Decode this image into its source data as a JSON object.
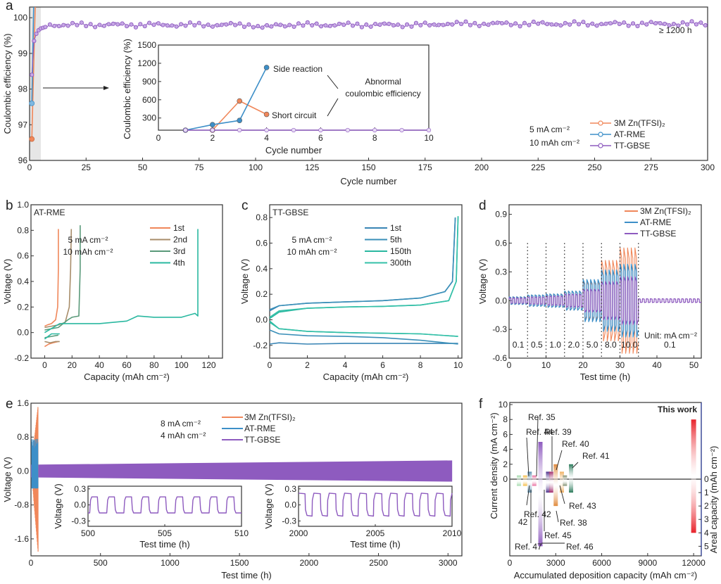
{
  "colors": {
    "zn": "#f0875a",
    "atrme": "#3d8fc8",
    "ttgbse": "#8e5bbf",
    "teal": "#2ab8a0",
    "brown": "#a88d6a",
    "green": "#5a9a7a",
    "thiswork": "#e8222a"
  },
  "chart_data": [
    {
      "panel": "a",
      "type": "scatter",
      "title": "",
      "xlabel": "Cycle number",
      "ylabel": "Coulombic efficiency (%)",
      "xlim": [
        0,
        300
      ],
      "ylim": [
        96,
        100.3
      ],
      "xticks": [
        "0",
        "25",
        "50",
        "75",
        "100",
        "125",
        "150",
        "175",
        "200",
        "225",
        "250",
        "275",
        "300"
      ],
      "yticks": [
        "96",
        "97",
        "98",
        "99",
        "100"
      ],
      "annotation": "≥ 1200 h",
      "conditions": [
        "5 mA cm⁻²",
        "10 mAh cm⁻²"
      ],
      "legend": [
        "3M Zn(TFSI)₂",
        "AT-RME",
        "TT-GBSE"
      ],
      "legend_position": "bottom-right",
      "series": [
        {
          "name": "3M Zn(TFSI)₂",
          "x": [
            1,
            2
          ],
          "y": [
            96.6,
            100.3
          ]
        },
        {
          "name": "AT-RME",
          "x": [
            1,
            2
          ],
          "y": [
            97.6,
            100.3
          ]
        },
        {
          "name": "TT-GBSE",
          "x": [
            1,
            2,
            3,
            4,
            5,
            10,
            25,
            50,
            75,
            100,
            125,
            150,
            175,
            200,
            225,
            250,
            275,
            300
          ],
          "y": [
            98.4,
            99.35,
            99.55,
            99.65,
            99.72,
            99.78,
            99.8,
            99.82,
            99.8,
            99.75,
            99.8,
            99.8,
            99.82,
            99.85,
            99.85,
            99.85,
            99.85,
            99.85
          ]
        }
      ],
      "inset": {
        "xlabel": "Cycle number",
        "ylabel": "Coulombic efficiency (%)",
        "xlim": [
          0,
          10
        ],
        "ylim": [
          100,
          1500
        ],
        "xticks": [
          "0",
          "2",
          "4",
          "6",
          "8",
          "10"
        ],
        "yticks": [
          "300",
          "600",
          "900",
          "1200",
          "1500"
        ],
        "annotations": [
          "Side reaction",
          "Short circuit",
          "Abnormal",
          "coulombic efficiency"
        ],
        "series": [
          {
            "name": "3M Zn(TFSI)₂",
            "x": [
              2,
              3,
              4
            ],
            "y": [
              100,
              580,
              360
            ]
          },
          {
            "name": "AT-RME",
            "x": [
              1,
              2,
              3,
              4
            ],
            "y": [
              100,
              190,
              260,
              1130
            ]
          },
          {
            "name": "TT-GBSE",
            "x": [
              1,
              2,
              3,
              4,
              5,
              6,
              7,
              8,
              9,
              10
            ],
            "y": [
              100,
              100,
              100,
              100,
              100,
              100,
              100,
              100,
              100,
              100
            ]
          }
        ]
      }
    },
    {
      "panel": "b",
      "type": "line",
      "title": "AT-RME",
      "xlabel": "Capacity (mAh cm⁻²)",
      "ylabel": "Voltage (V)",
      "xlim": [
        -10,
        130
      ],
      "ylim": [
        -0.2,
        1.0
      ],
      "xticks": [
        "0",
        "20",
        "40",
        "60",
        "80",
        "100",
        "120"
      ],
      "yticks": [
        "-0.2",
        "0.0",
        "0.2",
        "0.4",
        "0.6",
        "0.8",
        "1.0"
      ],
      "conditions": [
        "5 mA cm⁻²",
        "10 mAh cm⁻²"
      ],
      "legend": [
        "1st",
        "2nd",
        "3rd",
        "4th"
      ],
      "series": [
        {
          "name": "1st",
          "x": [
            0,
            2,
            5,
            8,
            9.5,
            10,
            10
          ],
          "y": [
            0.05,
            0.06,
            0.07,
            0.1,
            0.2,
            0.5,
            0.81
          ],
          "discharge": {
            "x": [
              0,
              3,
              6,
              10
            ],
            "y": [
              -0.11,
              -0.09,
              -0.08,
              -0.07
            ]
          }
        },
        {
          "name": "2nd",
          "x": [
            0,
            5,
            10,
            15,
            18,
            19,
            19.5
          ],
          "y": [
            0.04,
            0.05,
            0.06,
            0.08,
            0.2,
            0.5,
            0.81
          ],
          "discharge": {
            "x": [
              0,
              4,
              8,
              11
            ],
            "y": [
              -0.07,
              -0.08,
              -0.07,
              -0.07
            ]
          }
        },
        {
          "name": "3rd",
          "x": [
            0,
            10,
            17,
            20,
            25,
            26,
            26
          ],
          "y": [
            0.02,
            0.04,
            0.1,
            0.12,
            0.13,
            0.5,
            0.84
          ],
          "discharge": {
            "x": [
              0,
              5,
              10
            ],
            "y": [
              -0.04,
              -0.03,
              -0.02
            ]
          }
        },
        {
          "name": "4th",
          "x": [
            0,
            11,
            20,
            40,
            60,
            68,
            80,
            100,
            110,
            112,
            112
          ],
          "y": [
            0.0,
            0.07,
            0.07,
            0.07,
            0.09,
            0.13,
            0.12,
            0.12,
            0.15,
            0.13,
            0.81
          ],
          "discharge": {
            "x": [
              0,
              5,
              11
            ],
            "y": [
              -0.05,
              -0.01,
              -0.01
            ]
          }
        }
      ]
    },
    {
      "panel": "c",
      "type": "line",
      "title": "TT-GBSE",
      "xlabel": "Capacity (mAh cm⁻²)",
      "ylabel": "Voltage (V)",
      "xlim": [
        0,
        10.2
      ],
      "ylim": [
        -0.3,
        0.9
      ],
      "xticks": [
        "0",
        "2",
        "4",
        "6",
        "8",
        "10"
      ],
      "yticks": [
        "-0.2",
        "0.0",
        "0.2",
        "0.4",
        "0.6",
        "0.8"
      ],
      "conditions": [
        "5 mA cm⁻²",
        "10 mAh cm⁻²"
      ],
      "legend": [
        "1st",
        "5th",
        "150th",
        "300th"
      ],
      "series": [
        {
          "name": "1st",
          "charge": {
            "x": [
              0,
              0.5,
              2,
              4,
              6,
              8,
              9.3,
              9.7,
              9.85
            ],
            "y": [
              0.07,
              0.11,
              0.13,
              0.14,
              0.15,
              0.17,
              0.22,
              0.3,
              0.8
            ]
          },
          "discharge": {
            "x": [
              0,
              0.5,
              2,
              4,
              6,
              8,
              10
            ],
            "y": [
              -0.19,
              -0.18,
              -0.19,
              -0.185,
              -0.185,
              -0.185,
              -0.185
            ]
          }
        },
        {
          "name": "5th",
          "charge": {
            "x": [
              0,
              0.5,
              2,
              4,
              6,
              8,
              9.3,
              9.7,
              9.85
            ],
            "y": [
              0.08,
              0.11,
              0.13,
              0.14,
              0.15,
              0.17,
              0.22,
              0.3,
              0.8
            ]
          },
          "discharge": {
            "x": [
              0,
              0.5,
              2,
              4,
              6,
              8,
              10
            ],
            "y": [
              -0.08,
              -0.11,
              -0.125,
              -0.13,
              -0.14,
              -0.16,
              -0.19
            ]
          }
        },
        {
          "name": "150th",
          "charge": {
            "x": [
              0,
              0.5,
              2,
              4,
              6,
              8,
              9.5,
              9.9,
              10
            ],
            "y": [
              0.01,
              0.06,
              0.09,
              0.1,
              0.105,
              0.115,
              0.15,
              0.3,
              0.81
            ]
          },
          "discharge": {
            "x": [
              0,
              0.5,
              2,
              4,
              6,
              8,
              10
            ],
            "y": [
              -0.01,
              -0.07,
              -0.09,
              -0.1,
              -0.105,
              -0.11,
              -0.13
            ]
          }
        },
        {
          "name": "300th",
          "charge": {
            "x": [
              0,
              0.5,
              2,
              4,
              6,
              8,
              9.5,
              9.9,
              10
            ],
            "y": [
              0.02,
              0.07,
              0.09,
              0.1,
              0.105,
              0.115,
              0.15,
              0.3,
              0.81
            ]
          },
          "discharge": {
            "x": [
              0,
              0.5,
              2,
              4,
              6,
              8,
              10
            ],
            "y": [
              -0.02,
              -0.07,
              -0.09,
              -0.1,
              -0.105,
              -0.11,
              -0.13
            ]
          }
        }
      ]
    },
    {
      "panel": "d",
      "type": "line",
      "title": "",
      "xlabel": "Test time (h)",
      "ylabel": "Voltage (V)",
      "xlim": [
        0,
        52
      ],
      "ylim": [
        -0.6,
        1.0
      ],
      "xticks": [
        "0",
        "10",
        "20",
        "30",
        "40",
        "50"
      ],
      "yticks": [
        "-0.6",
        "-0.3",
        "0.0",
        "0.3",
        "0.6",
        "0.9"
      ],
      "legend": [
        "3M Zn(TFSI)₂",
        "AT-RME",
        "TT-GBSE"
      ],
      "legend_position": "top-right",
      "unit_note": "Unit: mA cm⁻²",
      "segments": [
        {
          "label": "0.1",
          "start": 0,
          "end": 5,
          "amp_zn": 0.04,
          "amp_at": 0.04,
          "amp_tt": 0.03
        },
        {
          "label": "0.5",
          "start": 5,
          "end": 10,
          "amp_zn": 0.06,
          "amp_at": 0.06,
          "amp_tt": 0.04
        },
        {
          "label": "1.0",
          "start": 10,
          "end": 15,
          "amp_zn": 0.07,
          "amp_at": 0.07,
          "amp_tt": 0.05
        },
        {
          "label": "2.0",
          "start": 15,
          "end": 20,
          "amp_zn": 0.1,
          "amp_at": 0.1,
          "amp_tt": 0.07
        },
        {
          "label": "5.0",
          "start": 20,
          "end": 25,
          "amp_zn": 0.2,
          "amp_at": 0.22,
          "amp_tt": 0.12
        },
        {
          "label": "8.0",
          "start": 25,
          "end": 30,
          "amp_zn": 0.42,
          "amp_at": 0.32,
          "amp_tt": 0.2
        },
        {
          "label": "10.0",
          "start": 30,
          "end": 35,
          "amp_zn": 0.55,
          "amp_at": 0.38,
          "amp_tt": 0.25
        },
        {
          "label": "0.1",
          "start": 35,
          "end": 52,
          "amp_zn": 0,
          "amp_at": 0,
          "amp_tt": 0.02
        }
      ]
    },
    {
      "panel": "e",
      "type": "line",
      "title": "",
      "xlabel": "Test time (h)",
      "ylabel": "Voltage (V)",
      "xlim": [
        0,
        3100
      ],
      "ylim": [
        -2.0,
        1.6
      ],
      "xticks": [
        "0",
        "500",
        "1000",
        "1500",
        "2000",
        "2500",
        "3000"
      ],
      "yticks": [
        "-1.6",
        "-0.8",
        "0.0",
        "0.8",
        "1.6"
      ],
      "conditions": [
        "8 mA cm⁻²",
        "4 mAh cm⁻²"
      ],
      "legend": [
        "3M Zn(TFSI)₂",
        "AT-RME",
        "TT-GBSE"
      ],
      "series": [
        {
          "name": "3M Zn(TFSI)₂",
          "end_time": 50,
          "max_voltage": 1.5,
          "min_voltage": -1.9
        },
        {
          "name": "AT-RME",
          "end_time": 50,
          "max_voltage": 0.75,
          "min_voltage": -0.4
        },
        {
          "name": "TT-GBSE",
          "end_time": 3030,
          "start_band": 0.15,
          "end_band": 0.25
        }
      ],
      "insets": [
        {
          "xlabel": "Test time (h)",
          "ylabel": "Voltage (V)",
          "xlim": [
            500,
            510
          ],
          "ylim": [
            -0.4,
            0.35
          ],
          "xticks": [
            "500",
            "505",
            "510"
          ],
          "yticks": [
            "-0.3",
            "0.0",
            "0.3"
          ],
          "amplitude": 0.15,
          "cycles": 9
        },
        {
          "xlabel": "Test time (h)",
          "ylabel": "Voltage (V)",
          "xlim": [
            2000,
            2010
          ],
          "ylim": [
            -0.4,
            0.35
          ],
          "xticks": [
            "2000",
            "2005",
            "2010"
          ],
          "yticks": [
            "-0.3",
            "0.0",
            "0.3"
          ],
          "amplitude": 0.22,
          "cycles": 10
        }
      ]
    },
    {
      "panel": "f",
      "type": "bar",
      "title": "",
      "xlabel": "Accumulated deposition capacity (mAh cm⁻²)",
      "ylabel": "Current density (mA cm⁻²)",
      "y2label": "Areal capacity (mAh cm⁻²)",
      "xlim": [
        0,
        12500
      ],
      "ylim": [
        0,
        10
      ],
      "xticks": [
        "0",
        "3000",
        "6000",
        "9000",
        "12000"
      ],
      "yticks": [
        "0",
        "2",
        "4",
        "6",
        "8",
        "10"
      ],
      "y2ticks": [
        "0",
        "1",
        "2",
        "3",
        "4",
        "5"
      ],
      "highlight_label": "This work",
      "bars": [
        {
          "ref": "Ref. 42",
          "x": 600,
          "current": 0.5,
          "capacity": 0.5,
          "color": "#9fd8a8"
        },
        {
          "ref": "Ref. 44",
          "x": 1000,
          "current": 0.5,
          "capacity": 0.5,
          "color": "#f5b93c"
        },
        {
          "ref": "Ref. 47",
          "x": 1300,
          "current": 1,
          "capacity": 1,
          "color": "#5a8fb0"
        },
        {
          "ref": "Ref. 35",
          "x": 1600,
          "current": 0.5,
          "capacity": 0.5,
          "color": "#e8669a"
        },
        {
          "ref": "Ref. 46",
          "x": 2000,
          "current": 5,
          "capacity": 5,
          "color": "#8e5bbf"
        },
        {
          "ref": "Ref. 45",
          "x": 2500,
          "current": 1,
          "capacity": 1,
          "color": "#4a2f8a"
        },
        {
          "ref": "Ref. 39",
          "x": 2700,
          "current": 1,
          "capacity": 1,
          "color": "#a02a6a"
        },
        {
          "ref": "Ref. 38",
          "x": 3000,
          "current": 2,
          "capacity": 2,
          "color": "#e08a3c"
        },
        {
          "ref": "Ref. 40",
          "x": 3400,
          "current": 1,
          "capacity": 1,
          "color": "#f0b060"
        },
        {
          "ref": "Ref. 43",
          "x": 3600,
          "current": 0.5,
          "capacity": 0.5,
          "color": "#7a8a6a"
        },
        {
          "ref": "Ref. 41",
          "x": 4000,
          "current": 2,
          "capacity": 1,
          "color": "#2a7a5a"
        },
        {
          "ref": "This work",
          "x": 12000,
          "current": 8,
          "capacity": 4,
          "color": "#e8222a"
        }
      ]
    }
  ]
}
